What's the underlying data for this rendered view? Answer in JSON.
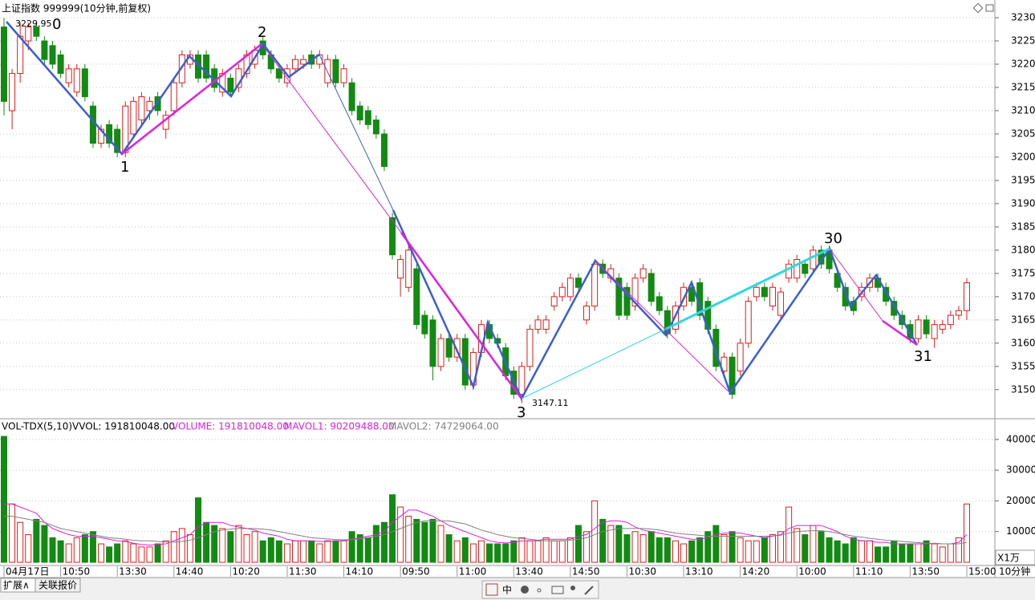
{
  "chart_data": {
    "type": "candlestick",
    "title": "上证指数 999999(10分钟,前复权)",
    "categories": [
      "04月17日",
      null,
      null,
      null,
      null,
      null,
      null,
      "10:50",
      null,
      null,
      null,
      null,
      null,
      null,
      "13:30",
      null,
      null,
      null,
      null,
      null,
      null,
      "14:40",
      null,
      null,
      null,
      null,
      null,
      null,
      "10:20",
      null,
      null,
      null,
      null,
      null,
      null,
      "11:30",
      null,
      null,
      null,
      null,
      null,
      null,
      "14:10",
      null,
      null,
      null,
      null,
      null,
      null,
      "09:50",
      null,
      null,
      null,
      null,
      null,
      null,
      "11:00",
      null,
      null,
      null,
      null,
      null,
      null,
      "13:40",
      null,
      null,
      null,
      null,
      null,
      null,
      "14:50",
      null,
      null,
      null,
      null,
      null,
      null,
      "10:30",
      null,
      null,
      null,
      null,
      null,
      null,
      "13:10",
      null,
      null,
      null,
      null,
      null,
      null,
      "14:20",
      null,
      null,
      null,
      null,
      null,
      null,
      "10:00",
      null,
      null,
      null,
      null,
      null,
      null,
      "11:10",
      null,
      null,
      null,
      null,
      null,
      null,
      "13:50",
      null,
      null,
      null,
      null,
      null,
      null,
      "15:00"
    ],
    "ohlc": [
      [
        3228,
        3229.95,
        3209,
        3212
      ],
      [
        3210,
        3219,
        3206,
        3218
      ],
      [
        3218,
        3229,
        3216,
        3226
      ],
      [
        3225,
        3229,
        3223,
        3228
      ],
      [
        3228,
        3229,
        3225,
        3226
      ],
      [
        3225,
        3226,
        3220,
        3221
      ],
      [
        3224,
        3225,
        3219,
        3220
      ],
      [
        3222,
        3223,
        3217,
        3218
      ],
      [
        3216,
        3220,
        3215,
        3219
      ],
      [
        3214,
        3220,
        3213,
        3219
      ],
      [
        3219,
        3220,
        3212,
        3213
      ],
      [
        3211,
        3212,
        3202,
        3203
      ],
      [
        3203,
        3207,
        3202,
        3206
      ],
      [
        3207,
        3208,
        3202,
        3203
      ],
      [
        3206,
        3207,
        3200,
        3201
      ],
      [
        3201,
        3212,
        3200,
        3211
      ],
      [
        3205,
        3213,
        3204,
        3212
      ],
      [
        3208,
        3214,
        3207,
        3213
      ],
      [
        3210,
        3213,
        3208,
        3212
      ],
      [
        3213,
        3214,
        3209,
        3210
      ],
      [
        3206,
        3210,
        3204,
        3209
      ],
      [
        3210,
        3217,
        3209,
        3216
      ],
      [
        3216,
        3223,
        3215,
        3222
      ],
      [
        3220,
        3223,
        3219,
        3222
      ],
      [
        3222,
        3223,
        3216,
        3217
      ],
      [
        3222,
        3223,
        3216,
        3217
      ],
      [
        3219,
        3220,
        3214,
        3215
      ],
      [
        3214,
        3219,
        3213,
        3218
      ],
      [
        3217,
        3218,
        3213,
        3214
      ],
      [
        3215,
        3220,
        3214,
        3219
      ],
      [
        3218,
        3223,
        3217,
        3222
      ],
      [
        3220,
        3224,
        3219,
        3223
      ],
      [
        3225,
        3226,
        3221,
        3222
      ],
      [
        3222,
        3223,
        3218,
        3219
      ],
      [
        3219,
        3220,
        3216,
        3217
      ],
      [
        3216,
        3220,
        3215,
        3219
      ],
      [
        3219,
        3222,
        3218,
        3221
      ],
      [
        3220,
        3222,
        3219,
        3221
      ],
      [
        3222,
        3223,
        3219,
        3220
      ],
      [
        3220,
        3223,
        3219,
        3222
      ],
      [
        3216,
        3222,
        3215,
        3221
      ],
      [
        3221,
        3222,
        3215,
        3216
      ],
      [
        3216,
        3220,
        3215,
        3219
      ],
      [
        3216,
        3217,
        3209,
        3210
      ],
      [
        3211,
        3212,
        3207,
        3208
      ],
      [
        3210,
        3211,
        3206,
        3207
      ],
      [
        3208,
        3209,
        3204,
        3205
      ],
      [
        3205,
        3206,
        3197,
        3198
      ],
      [
        3187,
        3188,
        3178,
        3179
      ],
      [
        3174,
        3179,
        3170,
        3178
      ],
      [
        3172,
        3181,
        3171,
        3180
      ],
      [
        3176,
        3177,
        3163,
        3164
      ],
      [
        3166,
        3167,
        3161,
        3162
      ],
      [
        3165,
        3166,
        3152,
        3155
      ],
      [
        3155,
        3162,
        3154,
        3161
      ],
      [
        3161,
        3162,
        3156,
        3157
      ],
      [
        3157,
        3162,
        3156,
        3161
      ],
      [
        3161,
        3162,
        3150,
        3151
      ],
      [
        3151,
        3159,
        3150,
        3158
      ],
      [
        3158,
        3165,
        3157,
        3164
      ],
      [
        3164,
        3165,
        3160,
        3161
      ],
      [
        3161,
        3162,
        3159,
        3160
      ],
      [
        3159,
        3160,
        3152,
        3153
      ],
      [
        3154,
        3155,
        3148,
        3149
      ],
      [
        3149,
        3156,
        3147.11,
        3155
      ],
      [
        3155,
        3164,
        3154,
        3163
      ],
      [
        3163,
        3166,
        3162,
        3165
      ],
      [
        3163,
        3166,
        3162,
        3165
      ],
      [
        3168,
        3171,
        3167,
        3170
      ],
      [
        3170,
        3173,
        3169,
        3172
      ],
      [
        3170,
        3175,
        3169,
        3174
      ],
      [
        3174,
        3175,
        3171,
        3172
      ],
      [
        3165,
        3169,
        3164,
        3168
      ],
      [
        3168,
        3178,
        3167,
        3177
      ],
      [
        3177,
        3178,
        3174,
        3175
      ],
      [
        3174,
        3177,
        3173,
        3176
      ],
      [
        3174,
        3175,
        3165,
        3166
      ],
      [
        3172,
        3173,
        3165,
        3166
      ],
      [
        3168,
        3175,
        3167,
        3174
      ],
      [
        3174,
        3177,
        3173,
        3176
      ],
      [
        3175,
        3176,
        3168,
        3169
      ],
      [
        3170,
        3171,
        3166,
        3167
      ],
      [
        3167,
        3168,
        3161,
        3162
      ],
      [
        3163,
        3169,
        3162,
        3168
      ],
      [
        3168,
        3173,
        3167,
        3172
      ],
      [
        3172,
        3173,
        3168,
        3169
      ],
      [
        3173,
        3174,
        3165,
        3166
      ],
      [
        3169,
        3170,
        3162,
        3163
      ],
      [
        3163,
        3164,
        3154,
        3155
      ],
      [
        3154,
        3158,
        3153,
        3157
      ],
      [
        3157,
        3158,
        3148,
        3149
      ],
      [
        3154,
        3161,
        3153,
        3160
      ],
      [
        3160,
        3170,
        3159,
        3169
      ],
      [
        3170,
        3173,
        3169,
        3172
      ],
      [
        3172,
        3173,
        3169,
        3170
      ],
      [
        3168,
        3173,
        3167,
        3172
      ],
      [
        3166,
        3172,
        3165,
        3171
      ],
      [
        3174,
        3178,
        3173,
        3177
      ],
      [
        3174,
        3179,
        3173,
        3178
      ],
      [
        3177,
        3178,
        3174,
        3175
      ],
      [
        3176,
        3181,
        3175,
        3180
      ],
      [
        3180,
        3181,
        3176,
        3177
      ],
      [
        3180,
        3181,
        3175,
        3176
      ],
      [
        3175,
        3176,
        3171,
        3172
      ],
      [
        3172,
        3173,
        3167,
        3168
      ],
      [
        3169,
        3170,
        3166,
        3167
      ],
      [
        3170,
        3173,
        3169,
        3172
      ],
      [
        3172,
        3175,
        3171,
        3174
      ],
      [
        3174,
        3175,
        3171,
        3172
      ],
      [
        3172,
        3173,
        3168,
        3169
      ],
      [
        3169,
        3170,
        3165,
        3166
      ],
      [
        3166,
        3167,
        3163,
        3164
      ],
      [
        3164,
        3165,
        3160,
        3161
      ],
      [
        3161,
        3166,
        3160,
        3165
      ],
      [
        3165,
        3166,
        3161,
        3162
      ],
      [
        3161,
        3165,
        3159,
        3164
      ],
      [
        3163,
        3165,
        3162,
        3164
      ],
      [
        3164,
        3167,
        3163,
        3166
      ],
      [
        3166,
        3168,
        3165,
        3167
      ],
      [
        3167,
        3174,
        3165,
        3173
      ]
    ],
    "up_color": "#e41a1a",
    "down_color": "#138a13",
    "ylim": [
      3144.1,
      3233.8
    ],
    "yticks": [
      3150,
      3155,
      3160,
      3165,
      3170,
      3175,
      3180,
      3185,
      3190,
      3195,
      3200,
      3205,
      3210,
      3215,
      3220,
      3225,
      3230
    ],
    "grid": true,
    "annotations": [
      "0",
      "1",
      "2",
      "3",
      "30",
      "31"
    ],
    "price_marks": [
      "3229.95",
      "3147.11"
    ],
    "period": "10分钟",
    "volume": {
      "type": "bar",
      "title": "VOL-TDX(5,10)",
      "readouts": [
        {
          "text": "VVOL: 191810048.00",
          "color": "#000000"
        },
        {
          "text": "VOLUME: 191810048.00",
          "color": "#e020e0"
        },
        {
          "text": "MAVOL1: 90209488.00",
          "color": "#e020e0"
        },
        {
          "text": "MAVOL2: 74729064.00",
          "color": "#808080"
        }
      ],
      "values": [
        41000,
        19000,
        13000,
        9000,
        14000,
        12000,
        8000,
        7000,
        6000,
        8000,
        9000,
        10000,
        6000,
        5000,
        6000,
        7000,
        6000,
        5000,
        5000,
        6000,
        7000,
        10000,
        11000,
        9000,
        21000,
        13000,
        12000,
        11000,
        10000,
        12000,
        9000,
        10000,
        7000,
        8000,
        7000,
        6000,
        7000,
        7000,
        7000,
        6000,
        7000,
        7000,
        7000,
        10000,
        9000,
        8000,
        12000,
        13000,
        22000,
        18000,
        15000,
        14000,
        13000,
        14000,
        12000,
        9000,
        7000,
        8000,
        6000,
        7000,
        6000,
        6000,
        6000,
        7000,
        8000,
        7000,
        7000,
        8000,
        7000,
        7000,
        8000,
        12000,
        10000,
        20000,
        14000,
        12000,
        12000,
        9000,
        10000,
        9000,
        10000,
        8000,
        8000,
        7000,
        6000,
        7000,
        8000,
        10000,
        12000,
        9000,
        10000,
        8000,
        7000,
        7000,
        8000,
        9000,
        10000,
        18000,
        11000,
        9000,
        12000,
        10000,
        8000,
        7000,
        6000,
        8000,
        7000,
        7000,
        5000,
        5000,
        7000,
        6000,
        6000,
        6000,
        7000,
        6000,
        5000,
        6000,
        8000,
        19000
      ],
      "ylim": [
        0,
        46500
      ],
      "yticks": [
        10000,
        20000,
        30000,
        40000
      ],
      "unit_label": "X1万",
      "series": [
        {
          "color": "#e020e0",
          "values": [
            19000,
            19000,
            18000,
            17000,
            16000,
            13000,
            11000,
            10000,
            9000,
            8500,
            8500,
            8500,
            8000,
            7500,
            7000,
            6800,
            6200,
            5800,
            5600,
            5800,
            6000,
            7000,
            8000,
            9000,
            11500,
            13000,
            13000,
            13000,
            12000,
            11500,
            11000,
            10500,
            9500,
            9000,
            8500,
            7500,
            7000,
            7000,
            7000,
            6800,
            6800,
            7000,
            7000,
            7500,
            8000,
            8500,
            9000,
            10000,
            13000,
            15000,
            17000,
            17000,
            16000,
            15000,
            13500,
            12000,
            11000,
            10000,
            9000,
            8000,
            7000,
            6500,
            6300,
            6500,
            7000,
            7000,
            7200,
            7500,
            7500,
            7500,
            7500,
            8500,
            9000,
            11000,
            13000,
            13500,
            13500,
            13000,
            11500,
            10500,
            10000,
            9500,
            9000,
            8500,
            8000,
            7500,
            7500,
            8000,
            9000,
            9500,
            9500,
            9500,
            9000,
            8500,
            8000,
            8500,
            9000,
            11000,
            12000,
            12000,
            12000,
            12000,
            11000,
            10000,
            8500,
            7500,
            7000,
            7000,
            6500,
            6500,
            6000,
            6000,
            6000,
            6000,
            6000,
            6200,
            6000,
            6000,
            6500,
            9000
          ]
        },
        {
          "color": "#808080",
          "values": [
            15000,
            15000,
            14500,
            14000,
            13500,
            13000,
            12000,
            11000,
            10500,
            10000,
            9500,
            9000,
            8500,
            8000,
            7800,
            7500,
            7200,
            7000,
            7000,
            6800,
            6600,
            6600,
            6800,
            7200,
            8000,
            9000,
            10000,
            10500,
            10800,
            11000,
            11000,
            11000,
            10800,
            10500,
            10000,
            9500,
            9000,
            8500,
            8000,
            7800,
            7600,
            7400,
            7300,
            7400,
            7600,
            8000,
            8500,
            9000,
            10000,
            11000,
            12000,
            13000,
            13500,
            13500,
            13500,
            13500,
            13000,
            12500,
            11500,
            10500,
            9800,
            9000,
            8500,
            8000,
            7800,
            7500,
            7200,
            7000,
            7000,
            7000,
            7200,
            7500,
            8000,
            9000,
            10000,
            10500,
            11000,
            11000,
            11000,
            11000,
            10800,
            10500,
            10000,
            9500,
            9200,
            9000,
            8800,
            8500,
            8500,
            8500,
            8500,
            8500,
            8500,
            8500,
            8500,
            8600,
            8800,
            9500,
            10000,
            10200,
            10300,
            10300,
            10000,
            9500,
            9000,
            8500,
            8200,
            7800,
            7500,
            7200,
            7000,
            6800,
            6600,
            6400,
            6200,
            6100,
            6000,
            6000,
            6000,
            6500
          ]
        }
      ]
    }
  },
  "tabs": [
    "扩展∧",
    "关联报价"
  ],
  "toolbar": [
    "中"
  ]
}
